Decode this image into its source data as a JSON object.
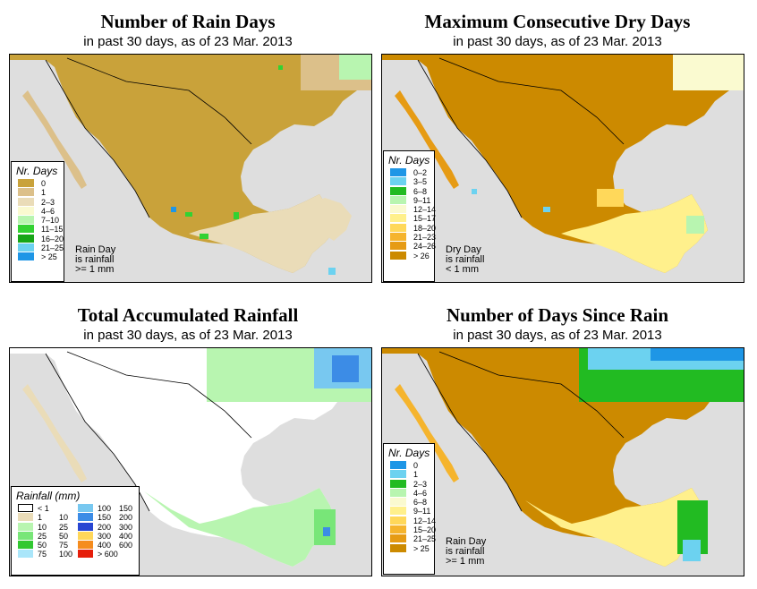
{
  "colors": {
    "ocean": "#dedede",
    "land_tan": "#c9a23a",
    "land_orange": "#cc8a00",
    "land_white": "#ffffff",
    "land_beige": "#e3cfa1"
  },
  "panels": [
    {
      "id": "rain-days",
      "title": "Number of Rain Days",
      "subtitle": "in past 30 days, as of  23 Mar. 2013",
      "legend_title": "Nr. Days",
      "legend": [
        {
          "label": "0",
          "color": "#c9a23a"
        },
        {
          "label": "1",
          "color": "#dcc08a"
        },
        {
          "label": "2–3",
          "color": "#eadcb8"
        },
        {
          "label": "4–6",
          "color": "#fafad0"
        },
        {
          "label": "7–10",
          "color": "#b8f5b0"
        },
        {
          "label": "11–15",
          "color": "#32d232"
        },
        {
          "label": "16–20",
          "color": "#17a617"
        },
        {
          "label": "21–25",
          "color": "#6cd2f0"
        },
        {
          "label": "> 25",
          "color": "#1e96e6"
        }
      ],
      "note": [
        "Rain Day",
        "is rainfall",
        ">= 1 mm"
      ]
    },
    {
      "id": "dry-days",
      "title": "Maximum Consecutive Dry Days",
      "subtitle": "in past 30 days, as of  23 Mar. 2013",
      "legend_title": "Nr. Days",
      "legend": [
        {
          "label": "0–2",
          "color": "#1e96e6"
        },
        {
          "label": "3–5",
          "color": "#6cd2f0"
        },
        {
          "label": "6–8",
          "color": "#22bb22"
        },
        {
          "label": "9–11",
          "color": "#b8f5b0"
        },
        {
          "label": "12–14",
          "color": "#fafad0"
        },
        {
          "label": "15–17",
          "color": "#fff08c"
        },
        {
          "label": "18–20",
          "color": "#ffd85a"
        },
        {
          "label": "21–23",
          "color": "#f5b42d"
        },
        {
          "label": "24–26",
          "color": "#e69b14"
        },
        {
          "label": "> 26",
          "color": "#cc8a00"
        }
      ],
      "note": [
        "Dry Day",
        "is rainfall",
        "< 1 mm"
      ]
    },
    {
      "id": "total-rain",
      "title": "Total Accumulated Rainfall",
      "subtitle": "in past 30 days, as of  23 Mar. 2013",
      "legend_title": "Rainfall (mm)",
      "legend_left": [
        {
          "a": "< 1",
          "b": "",
          "color": "#ffffff"
        },
        {
          "a": "1",
          "b": "10",
          "color": "#eadcb8"
        },
        {
          "a": "10",
          "b": "25",
          "color": "#b8f5b0"
        },
        {
          "a": "25",
          "b": "50",
          "color": "#78e678"
        },
        {
          "a": "50",
          "b": "75",
          "color": "#32c832"
        },
        {
          "a": "75",
          "b": "100",
          "color": "#aae6fa"
        }
      ],
      "legend_right": [
        {
          "a": "100",
          "b": "150",
          "color": "#78c8f0"
        },
        {
          "a": "150",
          "b": "200",
          "color": "#3c8ce6"
        },
        {
          "a": "200",
          "b": "300",
          "color": "#2846d2"
        },
        {
          "a": "300",
          "b": "400",
          "color": "#ffd75a"
        },
        {
          "a": "400",
          "b": "600",
          "color": "#f58c1e"
        },
        {
          "a": "> 600",
          "b": "",
          "color": "#e61e0a"
        }
      ]
    },
    {
      "id": "since-rain",
      "title": "Number of Days Since Rain",
      "subtitle": "in past 30 days, as of  23 Mar. 2013",
      "legend_title": "Nr. Days",
      "legend": [
        {
          "label": "0",
          "color": "#1e96e6"
        },
        {
          "label": "1",
          "color": "#6cd2f0"
        },
        {
          "label": "2–3",
          "color": "#22bb22"
        },
        {
          "label": "4–6",
          "color": "#b8f5b0"
        },
        {
          "label": "6–8",
          "color": "#fafad0"
        },
        {
          "label": "9–11",
          "color": "#fff08c"
        },
        {
          "label": "12–14",
          "color": "#ffd85a"
        },
        {
          "label": "15–20",
          "color": "#f5b42d"
        },
        {
          "label": "21–25",
          "color": "#e69b14"
        },
        {
          "label": "> 25",
          "color": "#cc8a00"
        }
      ],
      "note": [
        "Rain Day",
        "is rainfall",
        ">= 1 mm"
      ]
    }
  ]
}
